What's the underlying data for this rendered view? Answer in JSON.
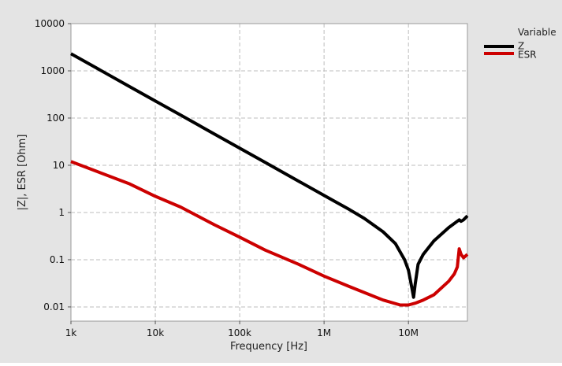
{
  "chart_data": {
    "type": "line",
    "title": "",
    "xlabel": "Frequency [Hz]",
    "ylabel": "|Z|, ESR [Ohm]",
    "xscale": "log",
    "yscale": "log",
    "xlim": [
      1000,
      50000000
    ],
    "ylim": [
      0.005,
      10000
    ],
    "grid": true,
    "legend": {
      "title": "Variable",
      "placement": "right",
      "entries": [
        "Z",
        "ESR"
      ]
    },
    "x_ticks": [
      {
        "value": 1000,
        "label": "1k"
      },
      {
        "value": 10000,
        "label": "10k"
      },
      {
        "value": 100000,
        "label": "100k"
      },
      {
        "value": 1000000,
        "label": "1M"
      },
      {
        "value": 10000000,
        "label": "10M"
      }
    ],
    "y_ticks": [
      {
        "value": 0.01,
        "label": "0.01"
      },
      {
        "value": 0.1,
        "label": "0.1"
      },
      {
        "value": 1,
        "label": "1"
      },
      {
        "value": 10,
        "label": "10"
      },
      {
        "value": 100,
        "label": "100"
      },
      {
        "value": 1000,
        "label": "1000"
      },
      {
        "value": 10000,
        "label": "10000"
      }
    ],
    "series": [
      {
        "name": "Z",
        "color": "#000000",
        "x": [
          1000,
          2000,
          5000,
          10000,
          20000,
          50000,
          100000,
          200000,
          500000,
          1000000,
          2000000,
          3000000,
          5000000,
          7000000,
          9000000,
          10000000,
          11000000,
          11500000,
          12000000,
          13000000,
          15000000,
          20000000,
          30000000,
          40000000,
          42000000,
          45000000,
          50000000
        ],
        "y": [
          2300,
          1150,
          460,
          230,
          115,
          46,
          23,
          11.5,
          4.6,
          2.3,
          1.15,
          0.75,
          0.39,
          0.22,
          0.1,
          0.06,
          0.025,
          0.016,
          0.03,
          0.08,
          0.13,
          0.25,
          0.48,
          0.7,
          0.65,
          0.7,
          0.85
        ]
      },
      {
        "name": "ESR",
        "color": "#cc0000",
        "x": [
          1000,
          2000,
          5000,
          10000,
          20000,
          50000,
          100000,
          200000,
          500000,
          1000000,
          2000000,
          5000000,
          8000000,
          10000000,
          12000000,
          15000000,
          20000000,
          30000000,
          35000000,
          38000000,
          40000000,
          42000000,
          45000000,
          50000000
        ],
        "y": [
          12,
          7.5,
          4,
          2.2,
          1.3,
          0.55,
          0.3,
          0.16,
          0.08,
          0.045,
          0.027,
          0.014,
          0.011,
          0.011,
          0.012,
          0.014,
          0.018,
          0.035,
          0.05,
          0.07,
          0.17,
          0.13,
          0.11,
          0.13
        ]
      }
    ]
  }
}
